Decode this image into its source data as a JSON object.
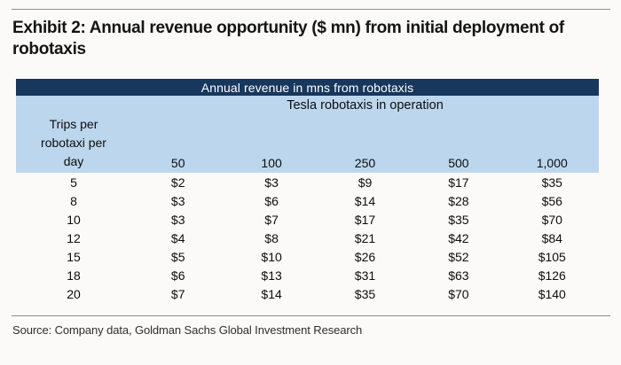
{
  "exhibit": {
    "title": "Exhibit 2: Annual revenue opportunity ($ mn) from initial deployment of robotaxis",
    "source": "Source: Company data, Goldman Sachs Global Investment Research"
  },
  "colors": {
    "banner_navy": "#17375d",
    "panel_light_blue": "#bcd6ed",
    "rule_gray": "#8f8f8f"
  },
  "table": {
    "banner": "Annual revenue in mns from robotaxis",
    "column_group_label": "Tesla robotaxis in operation",
    "row_header_lines": [
      "Trips per",
      "robotaxi per",
      "day"
    ],
    "columns": [
      "50",
      "100",
      "250",
      "500",
      "1,000"
    ],
    "rows": [
      {
        "label": "5",
        "values": [
          "$2",
          "$3",
          "$9",
          "$17",
          "$35"
        ]
      },
      {
        "label": "8",
        "values": [
          "$3",
          "$6",
          "$14",
          "$28",
          "$56"
        ]
      },
      {
        "label": "10",
        "values": [
          "$3",
          "$7",
          "$17",
          "$35",
          "$70"
        ]
      },
      {
        "label": "12",
        "values": [
          "$4",
          "$8",
          "$21",
          "$42",
          "$84"
        ]
      },
      {
        "label": "15",
        "values": [
          "$5",
          "$10",
          "$26",
          "$52",
          "$105"
        ]
      },
      {
        "label": "18",
        "values": [
          "$6",
          "$13",
          "$31",
          "$63",
          "$126"
        ]
      },
      {
        "label": "20",
        "values": [
          "$7",
          "$14",
          "$35",
          "$70",
          "$140"
        ]
      }
    ]
  },
  "chart_data": {
    "type": "table",
    "title": "Annual revenue in mns from robotaxis",
    "column_axis_label": "Tesla robotaxis in operation (number of robotaxis)",
    "row_axis_label": "Trips per robotaxi per day",
    "columns": [
      50,
      100,
      250,
      500,
      1000
    ],
    "rows": [
      5,
      8,
      10,
      12,
      15,
      18,
      20
    ],
    "values_usd_mn": [
      [
        2,
        3,
        9,
        17,
        35
      ],
      [
        3,
        6,
        14,
        28,
        56
      ],
      [
        3,
        7,
        17,
        35,
        70
      ],
      [
        4,
        8,
        21,
        42,
        84
      ],
      [
        5,
        10,
        26,
        52,
        105
      ],
      [
        6,
        13,
        31,
        63,
        126
      ],
      [
        7,
        14,
        35,
        70,
        140
      ]
    ]
  }
}
